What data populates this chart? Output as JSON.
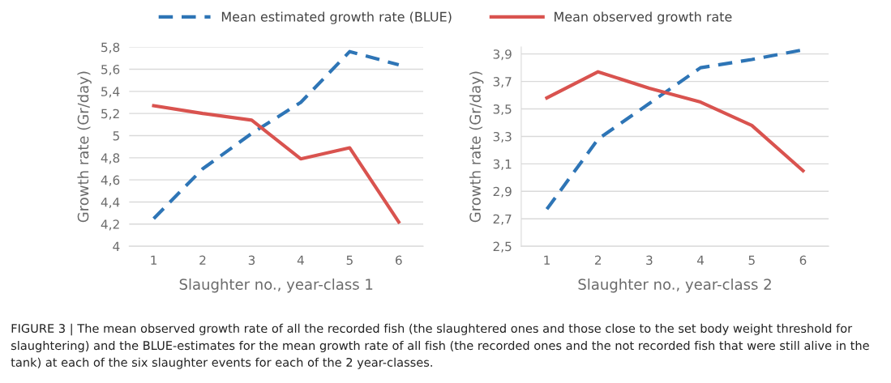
{
  "chart_data": [
    {
      "type": "line",
      "xlabel": "Slaughter no., year-class 1",
      "ylabel": "Growth rate (Gr/day)",
      "categories": [
        "1",
        "2",
        "3",
        "4",
        "5",
        "6"
      ],
      "series": [
        {
          "name": "Mean estimated growth rate (BLUE)",
          "color": "#2e75b6",
          "line_style": "dashed",
          "values": [
            4.25,
            4.7,
            5.02,
            5.3,
            5.76,
            5.64
          ]
        },
        {
          "name": "Mean observed growth rate",
          "color": "#d9534f",
          "line_style": "solid",
          "values": [
            5.27,
            5.2,
            5.14,
            4.79,
            4.89,
            4.22
          ]
        }
      ],
      "ylim": [
        4,
        5.8
      ],
      "yticks": [
        {
          "value": 4,
          "label": "4"
        },
        {
          "value": 4.2,
          "label": "4,2"
        },
        {
          "value": 4.4,
          "label": "4,4"
        },
        {
          "value": 4.6,
          "label": "4,6"
        },
        {
          "value": 4.8,
          "label": "4,8"
        },
        {
          "value": 5,
          "label": "5"
        },
        {
          "value": 5.2,
          "label": "5,2"
        },
        {
          "value": 5.4,
          "label": "5,4"
        },
        {
          "value": 5.6,
          "label": "5,6"
        },
        {
          "value": 5.8,
          "label": "5,8"
        }
      ],
      "grid": "y",
      "legend": "top",
      "marker": "none",
      "annotations": [
        "FIGURE 3 | The mean observed growth rate of all the recorded fish (the slaughtered ones and those close to the set body weight threshold for slaughtering) and the BLUE-estimates for the mean growth rate of all fish (the recorded ones and the not recorded fish that were still alive in the tank) at each of the six slaughter events for each of the 2 year-classes."
      ]
    },
    {
      "type": "line",
      "xlabel": "Slaughter no., year-class 2",
      "ylabel": "Growth rate (Gr/day)",
      "categories": [
        "1",
        "2",
        "3",
        "4",
        "5",
        "6"
      ],
      "series": [
        {
          "color": "#2e75b6",
          "line_style": "dashed",
          "values": [
            2.77,
            3.28,
            3.54,
            3.8,
            3.86,
            3.93
          ]
        },
        {
          "color": "#d9534f",
          "line_style": "solid",
          "values": [
            3.58,
            3.77,
            3.65,
            3.55,
            3.38,
            3.05
          ]
        }
      ],
      "ylim": [
        2.5,
        3.95
      ],
      "yticks": [
        {
          "value": 2.5,
          "label": "2,5"
        },
        {
          "value": 2.7,
          "label": "2,7"
        },
        {
          "value": 2.9,
          "label": "2,9"
        },
        {
          "value": 3.1,
          "label": "3,1"
        },
        {
          "value": 3.3,
          "label": "3,3"
        },
        {
          "value": 3.5,
          "label": "3,5"
        },
        {
          "value": 3.7,
          "label": "3,7"
        },
        {
          "value": 3.9,
          "label": "3,9"
        }
      ],
      "grid": "y",
      "marker": "none"
    }
  ]
}
